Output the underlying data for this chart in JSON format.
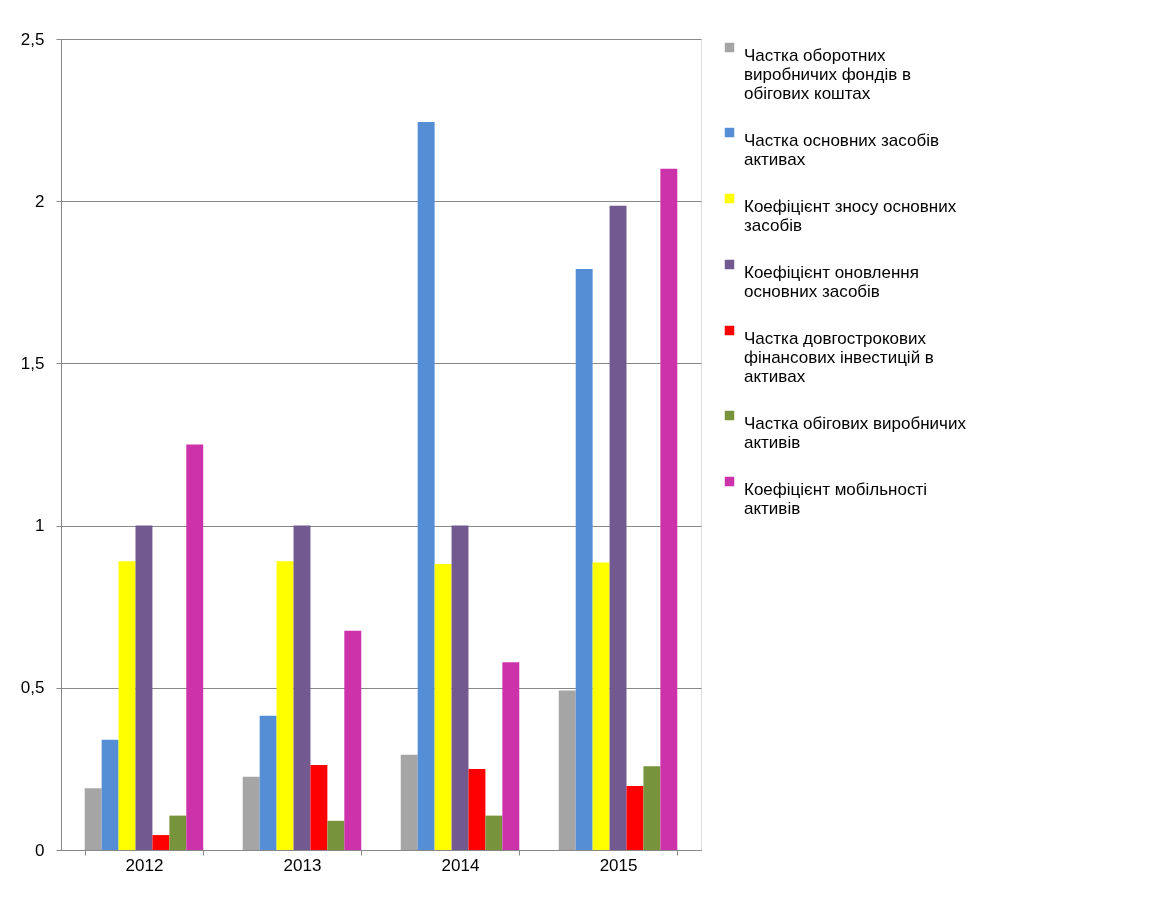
{
  "chart_data": {
    "type": "bar",
    "categories": [
      "2012",
      "2013",
      "2014",
      "2015"
    ],
    "series": [
      {
        "name": "Частка оборотних виробничих фондів в обігових коштах",
        "color": "#a5a5a5",
        "values": [
          0.19,
          0.226,
          0.294,
          0.492
        ]
      },
      {
        "name": "Частка основних засобів активах",
        "color": "#558ed5",
        "values": [
          0.34,
          0.414,
          2.244,
          1.791
        ]
      },
      {
        "name": "Коефіцієнт зносу основних засобів",
        "color": "#ffff00",
        "values": [
          0.89,
          0.89,
          0.882,
          0.886
        ]
      },
      {
        "name": "Коефіцієнт оновлення основних засобів",
        "color": "#725990",
        "values": [
          1.0,
          1.0,
          1.0,
          1.986
        ]
      },
      {
        "name": "Частка довгострокових фінансових інвестицій в активах",
        "color": "#ff0000",
        "values": [
          0.046,
          0.262,
          0.25,
          0.197
        ]
      },
      {
        "name": "Частка обігових виробничих активів",
        "color": "#77933c",
        "values": [
          0.106,
          0.09,
          0.106,
          0.258
        ]
      },
      {
        "name": "Коефіцієнт мобільності активів",
        "color": "#cc33aa",
        "values": [
          1.25,
          0.676,
          0.579,
          2.1
        ]
      }
    ],
    "ylim": [
      0,
      2.5
    ],
    "yticks": [
      0,
      {
        "value": 0.5,
        "label": "0,5"
      },
      1,
      {
        "value": 1.5,
        "label": "1,5"
      },
      2,
      {
        "value": 2.5,
        "label": "2,5"
      }
    ],
    "grid": "y",
    "legend": "right"
  }
}
